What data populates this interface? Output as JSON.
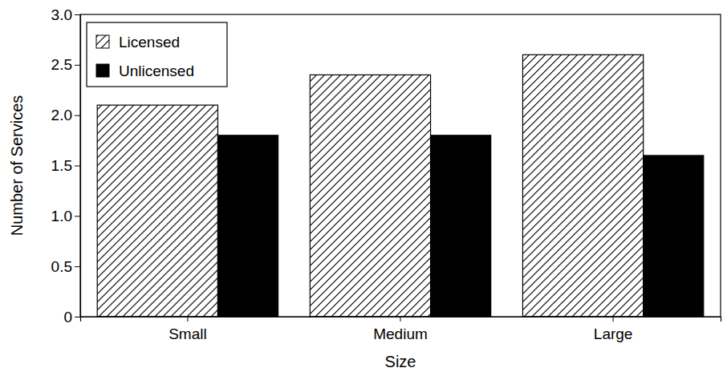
{
  "chart_data": {
    "type": "bar",
    "categories": [
      "Small",
      "Medium",
      "Large"
    ],
    "series": [
      {
        "name": "Licensed",
        "color": "#ffffff",
        "values": [
          2.1,
          2.4,
          2.6
        ]
      },
      {
        "name": "Unlicensed",
        "color": "#000000",
        "values": [
          1.8,
          1.8,
          1.6
        ]
      }
    ],
    "x_label": "Size",
    "y_label": "Number of Services",
    "ylim": [
      0,
      3
    ],
    "yticks": [
      0,
      0.5,
      {
        "value": 1,
        "label": "1.0"
      },
      1.5,
      {
        "value": 2,
        "label": "2.0"
      },
      2.5,
      {
        "value": 3,
        "label": "3.0"
      }
    ],
    "legend": "upper left",
    "grid": false
  }
}
